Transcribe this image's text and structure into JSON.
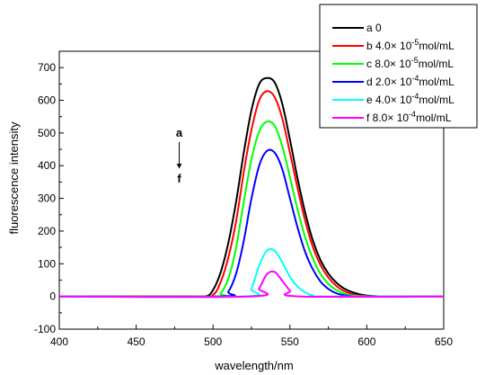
{
  "chart_data": {
    "type": "line",
    "xlabel": "wavelength/nm",
    "ylabel": "fluorescence intensity",
    "xlim": [
      400,
      650
    ],
    "ylim": [
      -100,
      750
    ],
    "xticks": [
      400,
      450,
      500,
      550,
      600,
      650
    ],
    "yticks": [
      -100,
      0,
      100,
      200,
      300,
      400,
      500,
      600,
      700
    ],
    "grid": false,
    "legend_position": "top-right",
    "annotation": {
      "top": "a",
      "bottom": "f",
      "arrow": "down",
      "at_x": 478,
      "from_y": 500,
      "to_y": 370
    },
    "series": [
      {
        "name": "0",
        "letter": "a",
        "color": "#000000",
        "x": [
          400,
          480,
          495,
          500,
          505,
          510,
          515,
          520,
          525,
          530,
          535,
          540,
          545,
          550,
          555,
          560,
          565,
          570,
          575,
          580,
          585,
          590,
          595,
          600,
          605,
          610,
          620,
          650
        ],
        "values": [
          0,
          0,
          0,
          20,
          75,
          165,
          290,
          440,
          570,
          650,
          668,
          655,
          590,
          480,
          360,
          255,
          170,
          110,
          70,
          43,
          25,
          14,
          7,
          3,
          1,
          0,
          0,
          0
        ]
      },
      {
        "name": "4.0× 10-5mol/mL",
        "letter": "b",
        "color": "#ff0000",
        "x": [
          400,
          490,
          500,
          505,
          510,
          515,
          520,
          525,
          530,
          535,
          540,
          545,
          550,
          555,
          560,
          565,
          570,
          575,
          580,
          585,
          590,
          595,
          600,
          605,
          650
        ],
        "values": [
          0,
          0,
          5,
          45,
          120,
          230,
          380,
          510,
          600,
          628,
          610,
          545,
          440,
          330,
          230,
          150,
          95,
          58,
          33,
          17,
          8,
          3,
          1,
          0,
          0
        ]
      },
      {
        "name": "8.0× 10-5mol/mL",
        "letter": "c",
        "color": "#00ff00",
        "x": [
          400,
          500,
          505,
          510,
          515,
          520,
          525,
          530,
          535,
          540,
          545,
          550,
          555,
          560,
          565,
          570,
          575,
          580,
          585,
          590,
          595,
          600,
          650
        ],
        "values": [
          0,
          0,
          10,
          55,
          150,
          290,
          420,
          505,
          535,
          522,
          460,
          365,
          265,
          180,
          115,
          68,
          38,
          20,
          9,
          3,
          1,
          0,
          0
        ]
      },
      {
        "name": "2.0× 10-4mol/mL",
        "letter": "d",
        "color": "#0000ff",
        "x": [
          400,
          505,
          510,
          515,
          520,
          525,
          530,
          535,
          540,
          545,
          550,
          555,
          560,
          565,
          570,
          575,
          580,
          585,
          590,
          595,
          650
        ],
        "values": [
          0,
          0,
          15,
          70,
          170,
          300,
          400,
          445,
          440,
          390,
          300,
          210,
          135,
          82,
          45,
          23,
          10,
          4,
          1,
          0,
          0
        ]
      },
      {
        "name": "4.0× 10-4mol/mL",
        "letter": "e",
        "color": "#00ffff",
        "x": [
          400,
          520,
          525,
          530,
          535,
          540,
          545,
          550,
          555,
          560,
          565,
          570,
          650
        ],
        "values": [
          0,
          0,
          25,
          95,
          140,
          140,
          105,
          60,
          30,
          12,
          3,
          0,
          0
        ]
      },
      {
        "name": "8.0× 10-4mol/mL",
        "letter": "f",
        "color": "#ff00ff",
        "x": [
          400,
          525,
          530,
          535,
          540,
          545,
          550,
          555,
          650
        ],
        "values": [
          0,
          0,
          25,
          68,
          75,
          48,
          18,
          0,
          0
        ]
      }
    ],
    "legend": [
      {
        "letter": "a",
        "text": "0"
      },
      {
        "letter": "b",
        "text": "4.0× 10",
        "sup": "-5",
        "unit": "mol/mL"
      },
      {
        "letter": "c",
        "text": "8.0× 10",
        "sup": "-5",
        "unit": "mol/mL"
      },
      {
        "letter": "d",
        "text": "2.0× 10",
        "sup": "-4",
        "unit": "mol/mL"
      },
      {
        "letter": "e",
        "text": "4.0× 10",
        "sup": "-4",
        "unit": "mol/mL"
      },
      {
        "letter": "f",
        "text": "8.0× 10",
        "sup": "-4",
        "unit": "mol/mL"
      }
    ]
  }
}
